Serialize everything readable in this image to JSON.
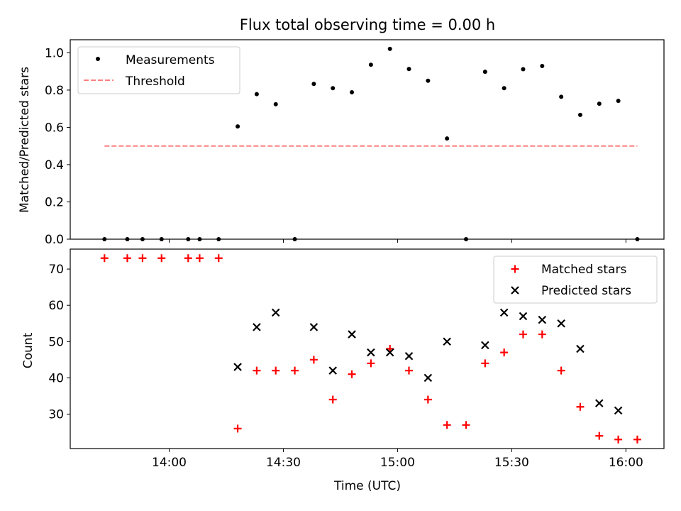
{
  "chart_data": [
    {
      "type": "scatter",
      "title": "Flux total observing time = 0.00 h",
      "xlabel": "",
      "ylabel": "Matched/Predicted stars",
      "xlim": [
        "13:34",
        "16:10"
      ],
      "ylim": [
        0,
        1.07
      ],
      "yticks": [
        "0.0",
        "0.2",
        "0.4",
        "0.6",
        "0.8",
        "1.0"
      ],
      "legend_position": "top-left",
      "series": [
        {
          "name": "Measurements",
          "marker": "dot",
          "color": "#000000",
          "points": [
            {
              "x": "13:43",
              "y": 0.0
            },
            {
              "x": "13:49",
              "y": 0.0
            },
            {
              "x": "13:53",
              "y": 0.0
            },
            {
              "x": "13:58",
              "y": 0.0
            },
            {
              "x": "14:05",
              "y": 0.0
            },
            {
              "x": "14:08",
              "y": 0.0
            },
            {
              "x": "14:13",
              "y": 0.0
            },
            {
              "x": "14:18",
              "y": 0.605
            },
            {
              "x": "14:23",
              "y": 0.778
            },
            {
              "x": "14:28",
              "y": 0.724
            },
            {
              "x": "14:33",
              "y": 0.0
            },
            {
              "x": "14:38",
              "y": 0.833
            },
            {
              "x": "14:43",
              "y": 0.81
            },
            {
              "x": "14:48",
              "y": 0.788
            },
            {
              "x": "14:53",
              "y": 0.936
            },
            {
              "x": "14:58",
              "y": 1.021
            },
            {
              "x": "15:03",
              "y": 0.913
            },
            {
              "x": "15:08",
              "y": 0.85
            },
            {
              "x": "15:13",
              "y": 0.54
            },
            {
              "x": "15:18",
              "y": 0.0
            },
            {
              "x": "15:23",
              "y": 0.898
            },
            {
              "x": "15:28",
              "y": 0.81
            },
            {
              "x": "15:33",
              "y": 0.912
            },
            {
              "x": "15:38",
              "y": 0.929
            },
            {
              "x": "15:43",
              "y": 0.764
            },
            {
              "x": "15:48",
              "y": 0.667
            },
            {
              "x": "15:53",
              "y": 0.727
            },
            {
              "x": "15:58",
              "y": 0.742
            },
            {
              "x": "16:03",
              "y": 0.0
            }
          ]
        },
        {
          "name": "Threshold",
          "style": "dashed",
          "color": "#ff8080",
          "points": [
            {
              "x": "13:43",
              "y": 0.5
            },
            {
              "x": "16:03",
              "y": 0.5
            }
          ]
        }
      ]
    },
    {
      "type": "scatter",
      "xlabel": "Time (UTC)",
      "ylabel": "Count",
      "xlim": [
        "13:34",
        "16:10"
      ],
      "ylim": [
        20.5,
        75.5
      ],
      "xticks": [
        "14:00",
        "14:30",
        "15:00",
        "15:30",
        "16:00"
      ],
      "yticks": [
        "30",
        "40",
        "50",
        "60",
        "70"
      ],
      "legend_position": "top-right",
      "series": [
        {
          "name": "Matched stars",
          "marker": "plus",
          "color": "#ff0000",
          "points": [
            {
              "x": "13:43",
              "y": 73
            },
            {
              "x": "13:49",
              "y": 73
            },
            {
              "x": "13:53",
              "y": 73
            },
            {
              "x": "13:58",
              "y": 73
            },
            {
              "x": "14:05",
              "y": 73
            },
            {
              "x": "14:08",
              "y": 73
            },
            {
              "x": "14:13",
              "y": 73
            },
            {
              "x": "14:18",
              "y": 26
            },
            {
              "x": "14:23",
              "y": 42
            },
            {
              "x": "14:28",
              "y": 42
            },
            {
              "x": "14:33",
              "y": 42
            },
            {
              "x": "14:38",
              "y": 45
            },
            {
              "x": "14:43",
              "y": 34
            },
            {
              "x": "14:48",
              "y": 41
            },
            {
              "x": "14:53",
              "y": 44
            },
            {
              "x": "14:58",
              "y": 48
            },
            {
              "x": "15:03",
              "y": 42
            },
            {
              "x": "15:08",
              "y": 34
            },
            {
              "x": "15:13",
              "y": 27
            },
            {
              "x": "15:18",
              "y": 27
            },
            {
              "x": "15:23",
              "y": 44
            },
            {
              "x": "15:28",
              "y": 47
            },
            {
              "x": "15:33",
              "y": 52
            },
            {
              "x": "15:38",
              "y": 52
            },
            {
              "x": "15:43",
              "y": 42
            },
            {
              "x": "15:48",
              "y": 32
            },
            {
              "x": "15:53",
              "y": 24
            },
            {
              "x": "15:58",
              "y": 23
            },
            {
              "x": "16:03",
              "y": 23
            }
          ]
        },
        {
          "name": "Predicted stars",
          "marker": "x",
          "color": "#000000",
          "points": [
            {
              "x": "14:18",
              "y": 43
            },
            {
              "x": "14:23",
              "y": 54
            },
            {
              "x": "14:28",
              "y": 58
            },
            {
              "x": "14:38",
              "y": 54
            },
            {
              "x": "14:43",
              "y": 42
            },
            {
              "x": "14:48",
              "y": 52
            },
            {
              "x": "14:53",
              "y": 47
            },
            {
              "x": "14:58",
              "y": 47
            },
            {
              "x": "15:03",
              "y": 46
            },
            {
              "x": "15:08",
              "y": 40
            },
            {
              "x": "15:13",
              "y": 50
            },
            {
              "x": "15:23",
              "y": 49
            },
            {
              "x": "15:28",
              "y": 58
            },
            {
              "x": "15:33",
              "y": 57
            },
            {
              "x": "15:38",
              "y": 56
            },
            {
              "x": "15:43",
              "y": 55
            },
            {
              "x": "15:48",
              "y": 48
            },
            {
              "x": "15:53",
              "y": 33
            },
            {
              "x": "15:58",
              "y": 31
            }
          ]
        }
      ]
    }
  ]
}
